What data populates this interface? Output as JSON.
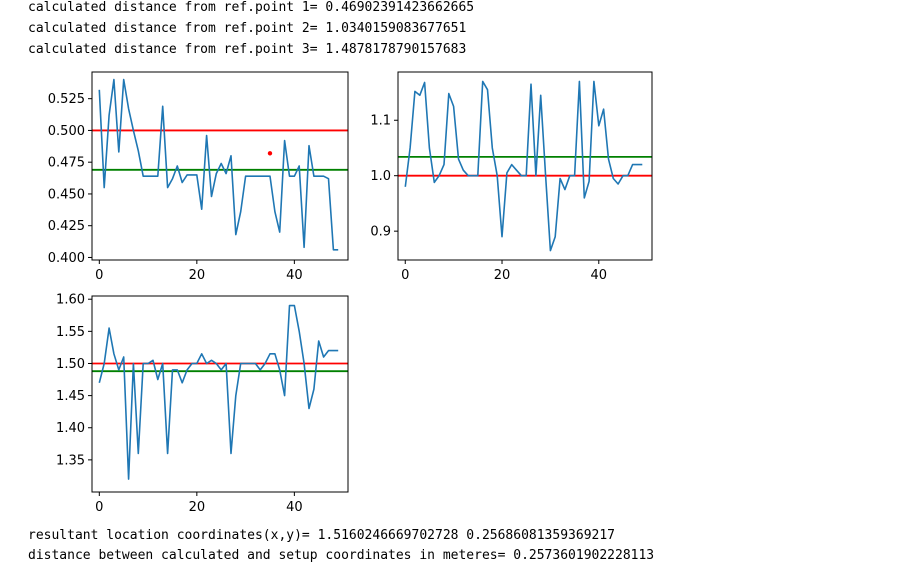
{
  "output": {
    "top_lines": [
      "calculated distance from ref.point 1= 0.46902391423662665",
      "calculated distance from ref.point 2= 1.0340159083677651",
      "calculated distance from ref.point 3= 1.4878178790157683"
    ],
    "bottom_lines": [
      "resultant location coordinates(x,y)= 1.5160246669702728 0.25686081359369217",
      "distance between calculated and setup coordinates in meteres= 0.2573601902228113"
    ]
  },
  "colors": {
    "series": "#1f77b4",
    "ref_line": "#ff0000",
    "calc_line": "#008000",
    "point": "#ff0000"
  },
  "chart_data": [
    {
      "type": "line",
      "x": [
        0,
        1,
        2,
        3,
        4,
        5,
        6,
        7,
        8,
        9,
        10,
        11,
        12,
        13,
        14,
        15,
        16,
        17,
        18,
        19,
        20,
        21,
        22,
        23,
        24,
        25,
        26,
        27,
        28,
        29,
        30,
        31,
        32,
        33,
        34,
        35,
        36,
        37,
        38,
        39,
        40,
        41,
        42,
        43,
        44,
        45,
        46,
        47,
        48,
        49
      ],
      "series": [
        {
          "values": [
            0.532,
            0.455,
            0.512,
            0.54,
            0.483,
            0.54,
            0.517,
            0.5,
            0.484,
            0.464,
            0.464,
            0.464,
            0.464,
            0.519,
            0.455,
            0.462,
            0.472,
            0.459,
            0.465,
            0.465,
            0.465,
            0.438,
            0.496,
            0.448,
            0.466,
            0.474,
            0.466,
            0.48,
            0.418,
            0.436,
            0.464,
            0.464,
            0.464,
            0.464,
            0.464,
            0.464,
            0.436,
            0.42,
            0.492,
            0.464,
            0.464,
            0.472,
            0.408,
            0.488,
            0.464,
            0.464,
            0.464,
            0.462,
            0.406,
            0.406
          ]
        }
      ],
      "hlines": [
        {
          "y": 0.5,
          "color": "red"
        },
        {
          "y": 0.469,
          "color": "green"
        }
      ],
      "point": {
        "x": 35,
        "y": 0.482
      },
      "xlim": [
        -1.5,
        51
      ],
      "ylim": [
        0.398,
        0.546
      ],
      "xticks": [
        0,
        20,
        40
      ],
      "yticks": [
        0.4,
        0.425,
        0.45,
        0.475,
        0.5,
        0.525
      ],
      "ytick_labels": [
        "0.400",
        "0.425",
        "0.450",
        "0.475",
        "0.500",
        "0.525"
      ]
    },
    {
      "type": "line",
      "x": [
        0,
        1,
        2,
        3,
        4,
        5,
        6,
        7,
        8,
        9,
        10,
        11,
        12,
        13,
        14,
        15,
        16,
        17,
        18,
        19,
        20,
        21,
        22,
        23,
        24,
        25,
        26,
        27,
        28,
        29,
        30,
        31,
        32,
        33,
        34,
        35,
        36,
        37,
        38,
        39,
        40,
        41,
        42,
        43,
        44,
        45,
        46,
        47,
        48,
        49
      ],
      "series": [
        {
          "values": [
            0.98,
            1.05,
            1.152,
            1.145,
            1.168,
            1.05,
            0.988,
            1.0,
            1.02,
            1.148,
            1.125,
            1.03,
            1.01,
            1.0,
            1.0,
            1.0,
            1.17,
            1.155,
            1.05,
            1.0,
            0.89,
            1.005,
            1.02,
            1.01,
            1.0,
            1.0,
            1.165,
            1.0,
            1.145,
            1.0,
            0.865,
            0.89,
            0.995,
            0.975,
            1.0,
            1.0,
            1.17,
            0.96,
            0.99,
            1.17,
            1.09,
            1.12,
            1.03,
            0.995,
            0.985,
            1.0,
            1.0,
            1.02,
            1.02,
            1.02
          ]
        }
      ],
      "hlines": [
        {
          "y": 1.0,
          "color": "red"
        },
        {
          "y": 1.034,
          "color": "green"
        }
      ],
      "xlim": [
        -1.5,
        51
      ],
      "ylim": [
        0.848,
        1.187
      ],
      "xticks": [
        0,
        20,
        40
      ],
      "yticks": [
        0.9,
        1.0,
        1.1
      ],
      "ytick_labels": [
        "0.9",
        "1.0",
        "1.1"
      ]
    },
    {
      "type": "line",
      "x": [
        0,
        1,
        2,
        3,
        4,
        5,
        6,
        7,
        8,
        9,
        10,
        11,
        12,
        13,
        14,
        15,
        16,
        17,
        18,
        19,
        20,
        21,
        22,
        23,
        24,
        25,
        26,
        27,
        28,
        29,
        30,
        31,
        32,
        33,
        34,
        35,
        36,
        37,
        38,
        39,
        40,
        41,
        42,
        43,
        44,
        45,
        46,
        47,
        48,
        49
      ],
      "series": [
        {
          "values": [
            1.47,
            1.5,
            1.555,
            1.515,
            1.49,
            1.51,
            1.32,
            1.5,
            1.36,
            1.5,
            1.5,
            1.505,
            1.475,
            1.5,
            1.36,
            1.49,
            1.49,
            1.47,
            1.49,
            1.5,
            1.5,
            1.515,
            1.5,
            1.505,
            1.5,
            1.49,
            1.5,
            1.36,
            1.45,
            1.5,
            1.5,
            1.5,
            1.5,
            1.49,
            1.5,
            1.515,
            1.515,
            1.49,
            1.45,
            1.59,
            1.59,
            1.55,
            1.5,
            1.43,
            1.46,
            1.535,
            1.51,
            1.52,
            1.52,
            1.52
          ]
        }
      ],
      "hlines": [
        {
          "y": 1.5,
          "color": "red"
        },
        {
          "y": 1.488,
          "color": "green"
        }
      ],
      "xlim": [
        -1.5,
        51
      ],
      "ylim": [
        1.3,
        1.605
      ],
      "xticks": [
        0,
        20,
        40
      ],
      "yticks": [
        1.35,
        1.4,
        1.45,
        1.5,
        1.55,
        1.6
      ],
      "ytick_labels": [
        "1.35",
        "1.40",
        "1.45",
        "1.50",
        "1.55",
        "1.60"
      ]
    }
  ]
}
